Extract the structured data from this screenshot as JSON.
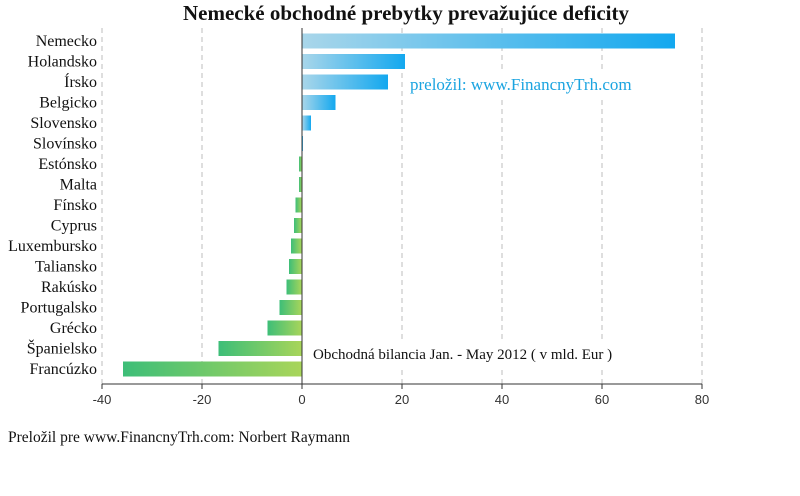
{
  "chart_data": {
    "type": "bar",
    "orientation": "horizontal",
    "title": "Nemecké obchodné prebytky prevažujúce deficity",
    "categories": [
      "Nemecko",
      "Holandsko",
      "Írsko",
      "Belgicko",
      "Slovensko",
      "Slovínsko",
      "Estónsko",
      "Malta",
      "Fínsko",
      "Cyprus",
      "Luxembursko",
      "Taliansko",
      "Rakúsko",
      "Portugalsko",
      "Grécko",
      "Španielsko",
      "Francúzko"
    ],
    "values": [
      74.6,
      20.6,
      17.2,
      6.7,
      1.8,
      0.2,
      -0.6,
      -0.6,
      -1.3,
      -1.6,
      -2.2,
      -2.6,
      -3.1,
      -4.5,
      -6.9,
      -16.7,
      -35.8
    ],
    "xlim": [
      -40,
      80
    ],
    "xticks": [
      -40,
      -20,
      0,
      20,
      40,
      60,
      80
    ],
    "grid": "vertical dashed",
    "annotations": [
      "preložil: www.FinancnyTrh.com",
      "Obchodná bilancia Jan. - May 2012 ( v mld. Eur )"
    ],
    "colors": {
      "positive_start": "#a9d6ea",
      "positive_end": "#13a8ef",
      "negative_start": "#3dbe78",
      "negative_end": "#a9d55a",
      "annotation": "#1ba4e0",
      "grid": "#bdbdbd",
      "axis": "#333333"
    }
  },
  "footer": "Preložil pre www.FinancnyTrh.com: Norbert Raymann"
}
